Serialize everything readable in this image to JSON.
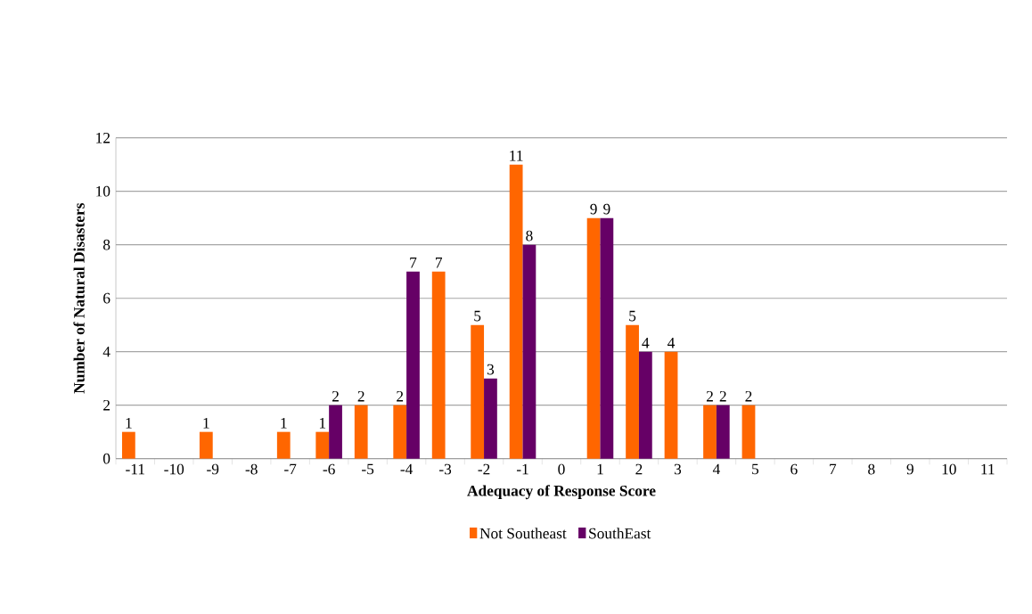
{
  "chart_data": {
    "type": "bar",
    "xlabel": "Adequacy of Response Score",
    "ylabel": "Number of Natural Disasters",
    "categories": [
      "-11",
      "-10",
      "-9",
      "-8",
      "-7",
      "-6",
      "-5",
      "-4",
      "-3",
      "-2",
      "-1",
      "0",
      "1",
      "2",
      "3",
      "4",
      "5",
      "6",
      "7",
      "8",
      "9",
      "10",
      "11"
    ],
    "series": [
      {
        "name": "Not Southeast",
        "color": "#ff6600",
        "values": [
          1,
          null,
          1,
          null,
          1,
          1,
          2,
          2,
          7,
          5,
          11,
          null,
          9,
          5,
          4,
          2,
          2,
          null,
          null,
          null,
          null,
          null,
          null
        ]
      },
      {
        "name": "SouthEast",
        "color": "#660066",
        "values": [
          null,
          null,
          null,
          null,
          null,
          2,
          null,
          7,
          null,
          3,
          8,
          null,
          9,
          4,
          null,
          2,
          null,
          null,
          null,
          null,
          null,
          null,
          null
        ]
      }
    ],
    "ylim": [
      0,
      12
    ],
    "yticks": [
      0,
      2,
      4,
      6,
      8,
      10,
      12
    ],
    "grid": "y",
    "legend": "bottom",
    "data_labels": true
  }
}
